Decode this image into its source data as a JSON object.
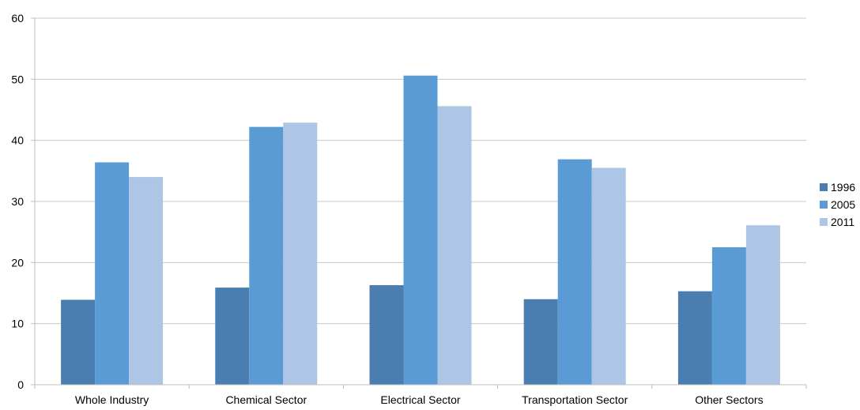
{
  "chart_data": {
    "type": "bar",
    "title": "",
    "xlabel": "",
    "ylabel": "",
    "ylim": [
      0,
      60
    ],
    "yticks": [
      0,
      10,
      20,
      30,
      40,
      50,
      60
    ],
    "grid": true,
    "legend_position": "right",
    "categories": [
      "Whole Industry",
      "Chemical Sector",
      "Electrical Sector",
      "Transportation Sector",
      "Other Sectors"
    ],
    "series": [
      {
        "name": "1996",
        "color": "#4a7eb0",
        "values": [
          13.9,
          15.9,
          16.3,
          14.0,
          15.3
        ]
      },
      {
        "name": "2005",
        "color": "#5b9bd5",
        "values": [
          36.4,
          42.2,
          50.6,
          36.9,
          22.5
        ]
      },
      {
        "name": "2011",
        "color": "#adc6e5",
        "values": [
          34.0,
          42.9,
          45.6,
          35.5,
          26.1
        ]
      }
    ],
    "colors": {
      "grid": "#c9c9c9",
      "axis": "#bfbfbf"
    }
  }
}
